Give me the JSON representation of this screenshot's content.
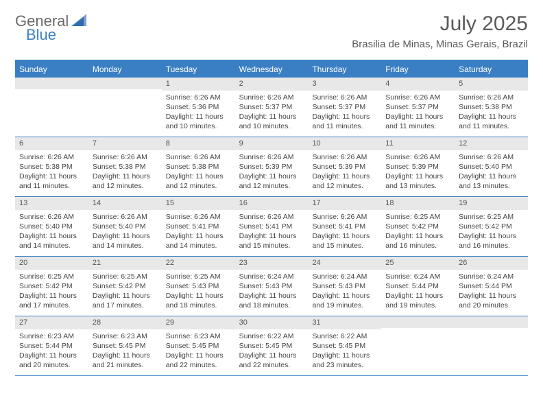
{
  "logo": {
    "text1": "General",
    "text2": "Blue"
  },
  "title": "July 2025",
  "location": "Brasilia de Minas, Minas Gerais, Brazil",
  "colors": {
    "accent": "#3a7fc4",
    "header_text": "#ffffff",
    "daynum_bg": "#e8e8e8",
    "body_text": "#444444",
    "title_text": "#5a5a5a",
    "logo_gray": "#6a6a6a"
  },
  "day_names": [
    "Sunday",
    "Monday",
    "Tuesday",
    "Wednesday",
    "Thursday",
    "Friday",
    "Saturday"
  ],
  "cell_font_size_pt": 8,
  "title_font_size_pt": 22,
  "location_font_size_pt": 11,
  "weeks": [
    [
      {
        "n": "",
        "sunrise": "",
        "sunset": "",
        "daylight": ""
      },
      {
        "n": "",
        "sunrise": "",
        "sunset": "",
        "daylight": ""
      },
      {
        "n": "1",
        "sunrise": "Sunrise: 6:26 AM",
        "sunset": "Sunset: 5:36 PM",
        "daylight": "Daylight: 11 hours and 10 minutes."
      },
      {
        "n": "2",
        "sunrise": "Sunrise: 6:26 AM",
        "sunset": "Sunset: 5:37 PM",
        "daylight": "Daylight: 11 hours and 10 minutes."
      },
      {
        "n": "3",
        "sunrise": "Sunrise: 6:26 AM",
        "sunset": "Sunset: 5:37 PM",
        "daylight": "Daylight: 11 hours and 11 minutes."
      },
      {
        "n": "4",
        "sunrise": "Sunrise: 6:26 AM",
        "sunset": "Sunset: 5:37 PM",
        "daylight": "Daylight: 11 hours and 11 minutes."
      },
      {
        "n": "5",
        "sunrise": "Sunrise: 6:26 AM",
        "sunset": "Sunset: 5:38 PM",
        "daylight": "Daylight: 11 hours and 11 minutes."
      }
    ],
    [
      {
        "n": "6",
        "sunrise": "Sunrise: 6:26 AM",
        "sunset": "Sunset: 5:38 PM",
        "daylight": "Daylight: 11 hours and 11 minutes."
      },
      {
        "n": "7",
        "sunrise": "Sunrise: 6:26 AM",
        "sunset": "Sunset: 5:38 PM",
        "daylight": "Daylight: 11 hours and 12 minutes."
      },
      {
        "n": "8",
        "sunrise": "Sunrise: 6:26 AM",
        "sunset": "Sunset: 5:38 PM",
        "daylight": "Daylight: 11 hours and 12 minutes."
      },
      {
        "n": "9",
        "sunrise": "Sunrise: 6:26 AM",
        "sunset": "Sunset: 5:39 PM",
        "daylight": "Daylight: 11 hours and 12 minutes."
      },
      {
        "n": "10",
        "sunrise": "Sunrise: 6:26 AM",
        "sunset": "Sunset: 5:39 PM",
        "daylight": "Daylight: 11 hours and 12 minutes."
      },
      {
        "n": "11",
        "sunrise": "Sunrise: 6:26 AM",
        "sunset": "Sunset: 5:39 PM",
        "daylight": "Daylight: 11 hours and 13 minutes."
      },
      {
        "n": "12",
        "sunrise": "Sunrise: 6:26 AM",
        "sunset": "Sunset: 5:40 PM",
        "daylight": "Daylight: 11 hours and 13 minutes."
      }
    ],
    [
      {
        "n": "13",
        "sunrise": "Sunrise: 6:26 AM",
        "sunset": "Sunset: 5:40 PM",
        "daylight": "Daylight: 11 hours and 14 minutes."
      },
      {
        "n": "14",
        "sunrise": "Sunrise: 6:26 AM",
        "sunset": "Sunset: 5:40 PM",
        "daylight": "Daylight: 11 hours and 14 minutes."
      },
      {
        "n": "15",
        "sunrise": "Sunrise: 6:26 AM",
        "sunset": "Sunset: 5:41 PM",
        "daylight": "Daylight: 11 hours and 14 minutes."
      },
      {
        "n": "16",
        "sunrise": "Sunrise: 6:26 AM",
        "sunset": "Sunset: 5:41 PM",
        "daylight": "Daylight: 11 hours and 15 minutes."
      },
      {
        "n": "17",
        "sunrise": "Sunrise: 6:26 AM",
        "sunset": "Sunset: 5:41 PM",
        "daylight": "Daylight: 11 hours and 15 minutes."
      },
      {
        "n": "18",
        "sunrise": "Sunrise: 6:25 AM",
        "sunset": "Sunset: 5:42 PM",
        "daylight": "Daylight: 11 hours and 16 minutes."
      },
      {
        "n": "19",
        "sunrise": "Sunrise: 6:25 AM",
        "sunset": "Sunset: 5:42 PM",
        "daylight": "Daylight: 11 hours and 16 minutes."
      }
    ],
    [
      {
        "n": "20",
        "sunrise": "Sunrise: 6:25 AM",
        "sunset": "Sunset: 5:42 PM",
        "daylight": "Daylight: 11 hours and 17 minutes."
      },
      {
        "n": "21",
        "sunrise": "Sunrise: 6:25 AM",
        "sunset": "Sunset: 5:42 PM",
        "daylight": "Daylight: 11 hours and 17 minutes."
      },
      {
        "n": "22",
        "sunrise": "Sunrise: 6:25 AM",
        "sunset": "Sunset: 5:43 PM",
        "daylight": "Daylight: 11 hours and 18 minutes."
      },
      {
        "n": "23",
        "sunrise": "Sunrise: 6:24 AM",
        "sunset": "Sunset: 5:43 PM",
        "daylight": "Daylight: 11 hours and 18 minutes."
      },
      {
        "n": "24",
        "sunrise": "Sunrise: 6:24 AM",
        "sunset": "Sunset: 5:43 PM",
        "daylight": "Daylight: 11 hours and 19 minutes."
      },
      {
        "n": "25",
        "sunrise": "Sunrise: 6:24 AM",
        "sunset": "Sunset: 5:44 PM",
        "daylight": "Daylight: 11 hours and 19 minutes."
      },
      {
        "n": "26",
        "sunrise": "Sunrise: 6:24 AM",
        "sunset": "Sunset: 5:44 PM",
        "daylight": "Daylight: 11 hours and 20 minutes."
      }
    ],
    [
      {
        "n": "27",
        "sunrise": "Sunrise: 6:23 AM",
        "sunset": "Sunset: 5:44 PM",
        "daylight": "Daylight: 11 hours and 20 minutes."
      },
      {
        "n": "28",
        "sunrise": "Sunrise: 6:23 AM",
        "sunset": "Sunset: 5:45 PM",
        "daylight": "Daylight: 11 hours and 21 minutes."
      },
      {
        "n": "29",
        "sunrise": "Sunrise: 6:23 AM",
        "sunset": "Sunset: 5:45 PM",
        "daylight": "Daylight: 11 hours and 22 minutes."
      },
      {
        "n": "30",
        "sunrise": "Sunrise: 6:22 AM",
        "sunset": "Sunset: 5:45 PM",
        "daylight": "Daylight: 11 hours and 22 minutes."
      },
      {
        "n": "31",
        "sunrise": "Sunrise: 6:22 AM",
        "sunset": "Sunset: 5:45 PM",
        "daylight": "Daylight: 11 hours and 23 minutes."
      },
      {
        "n": "",
        "sunrise": "",
        "sunset": "",
        "daylight": ""
      },
      {
        "n": "",
        "sunrise": "",
        "sunset": "",
        "daylight": ""
      }
    ]
  ]
}
